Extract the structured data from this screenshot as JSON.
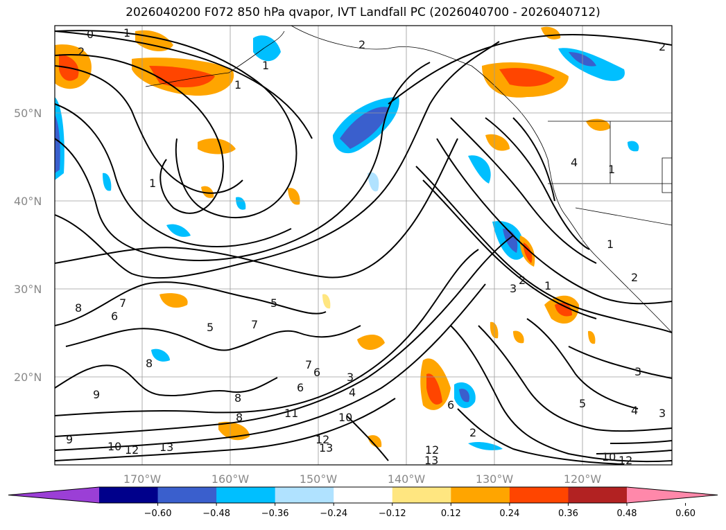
{
  "title": "2026040200 F072 850 hPa qvapor, IVT Landfall PC (2026040700 - 2026040712)",
  "lat_labels": [
    "50°N",
    "40°N",
    "30°N",
    "20°N"
  ],
  "lon_labels": [
    "170°W",
    "160°W",
    "150°W",
    "140°W",
    "130°W",
    "120°W"
  ],
  "colorbar": {
    "ticks": [
      "−0.60",
      "−0.48",
      "−0.36",
      "−0.24",
      "−0.12",
      "0.12",
      "0.24",
      "0.36",
      "0.48",
      "0.60"
    ],
    "colors": [
      "#9b3fd6",
      "#00008b",
      "#3a5fcd",
      "#00bfff",
      "#b0e2ff",
      "#ffffff",
      "#ffe680",
      "#ffa500",
      "#ff4500",
      "#b22222",
      "#ff88aa"
    ]
  },
  "contour_labels": [
    "0",
    "1",
    "2",
    "1",
    "2",
    "2",
    "1",
    "1",
    "8",
    "7",
    "6",
    "5",
    "7",
    "5",
    "6",
    "7",
    "6",
    "8",
    "8",
    "9",
    "8",
    "9",
    "10",
    "12",
    "13",
    "11",
    "10",
    "12",
    "13",
    "3",
    "4",
    "6",
    "2",
    "1",
    "3",
    "2",
    "1",
    "4",
    "1",
    "2",
    "3",
    "4",
    "5",
    "3",
    "10",
    "12",
    "12",
    "13"
  ]
}
